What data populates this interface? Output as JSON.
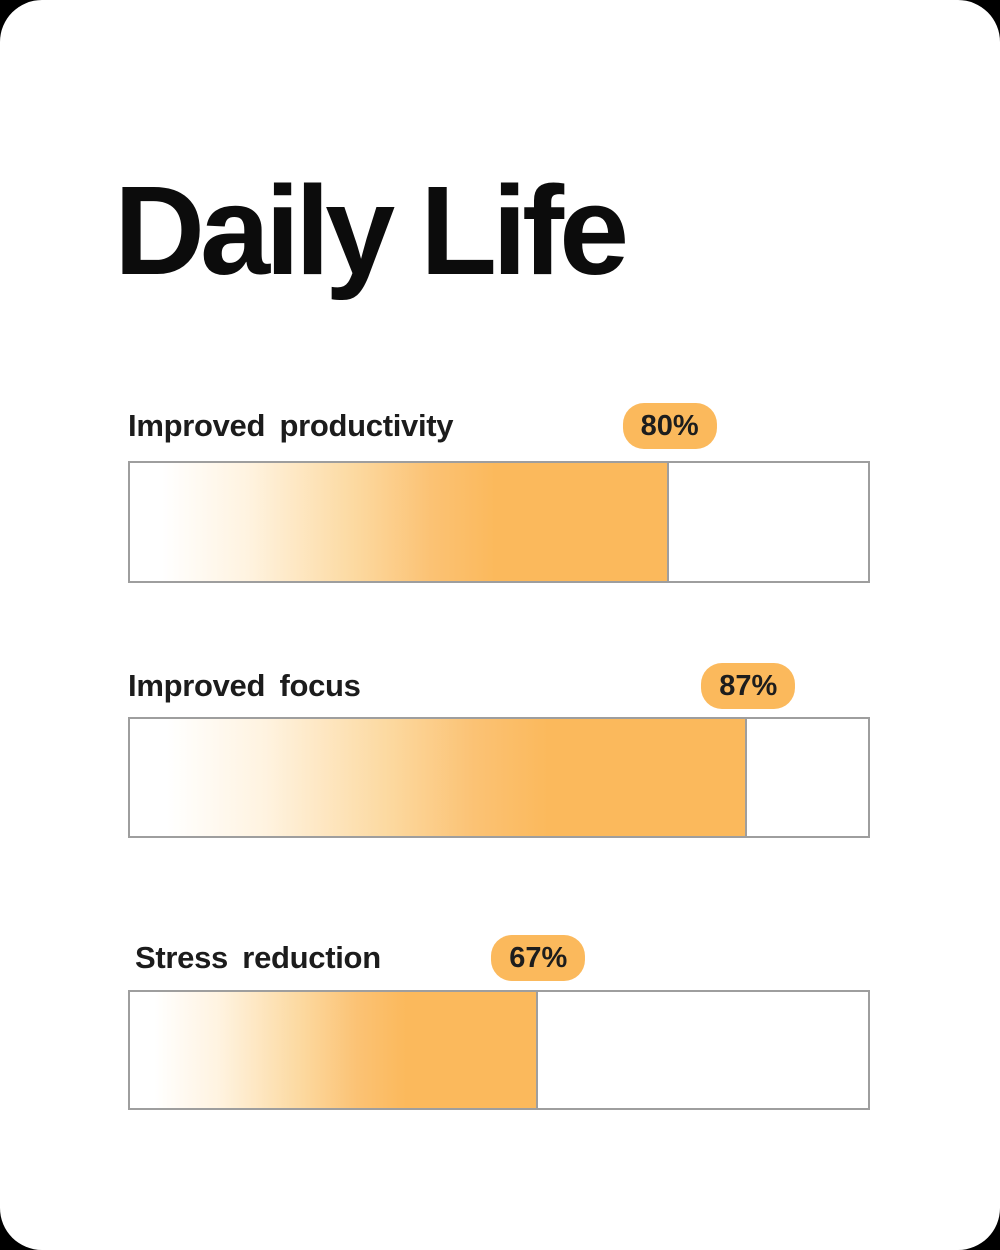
{
  "page": {
    "title": "Daily Life"
  },
  "colors": {
    "accent": "#FBB95C",
    "track_border": "#9E9E9E",
    "text": "#1C1C1C",
    "page_bg": "#000000",
    "card_bg": "#FFFFFF"
  },
  "chart_data": {
    "type": "bar",
    "orientation": "horizontal",
    "title": "Daily Life",
    "categories": [
      "Improved productivity",
      "Improved focus",
      "Stress reduction"
    ],
    "values": [
      80,
      87,
      67
    ],
    "unit": "%",
    "value_labels": [
      "80%",
      "87%",
      "67%"
    ],
    "xlim": [
      0,
      100
    ],
    "legend": false,
    "grid": false,
    "notes": "Each bar is a gray-outlined white track; the fill is a white-to-orange gradient ending in a gray edge line; an orange rounded badge with the percentage sits above the end of each fill."
  },
  "rows": [
    {
      "label": "Improved productivity",
      "value_label": "80%",
      "fill_width": "73%"
    },
    {
      "label": "Improved focus",
      "value_label": "87%",
      "fill_width": "83.6%"
    },
    {
      "label": "Stress reduction",
      "value_label": "67%",
      "fill_width": "55.3%"
    }
  ]
}
